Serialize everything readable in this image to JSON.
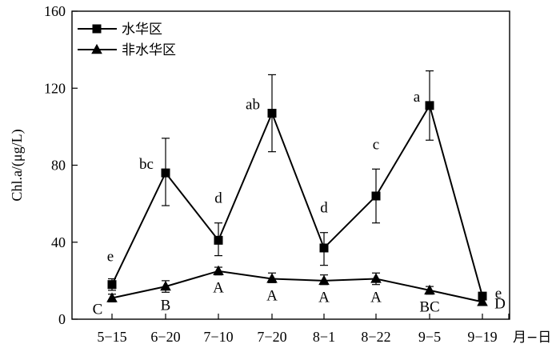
{
  "chart_data": {
    "type": "line",
    "x_unit_label": "月−日",
    "ylabel": "Chl.a/(μg/L)",
    "categories": [
      "5−15",
      "6−20",
      "7−10",
      "7−20",
      "8−1",
      "8−22",
      "9−5",
      "9−19"
    ],
    "ylim": [
      0,
      160
    ],
    "yticks": [
      0,
      40,
      80,
      120,
      160
    ],
    "legend_position": "top-left",
    "series": [
      {
        "name": "水华区",
        "marker": "square",
        "values": [
          18,
          76,
          41,
          107,
          37,
          64,
          111,
          12
        ],
        "err_upper": [
          21,
          94,
          50,
          127,
          45,
          78,
          129,
          13
        ],
        "err_lower": [
          15,
          59,
          33,
          87,
          28,
          50,
          93,
          11
        ],
        "labels": [
          "e",
          "bc",
          "d",
          "ab",
          "d",
          "c",
          "a",
          "e"
        ]
      },
      {
        "name": "非水华区",
        "marker": "triangle",
        "values": [
          11,
          17,
          25,
          21,
          20,
          21,
          15,
          9
        ],
        "err_upper": [
          13,
          20,
          27,
          24,
          23,
          24,
          17,
          10
        ],
        "err_lower": [
          9,
          14,
          23,
          19,
          18,
          18,
          13,
          8
        ],
        "labels": [
          "C",
          "B",
          "A",
          "A",
          "A",
          "A",
          "BC",
          "D"
        ]
      }
    ]
  }
}
